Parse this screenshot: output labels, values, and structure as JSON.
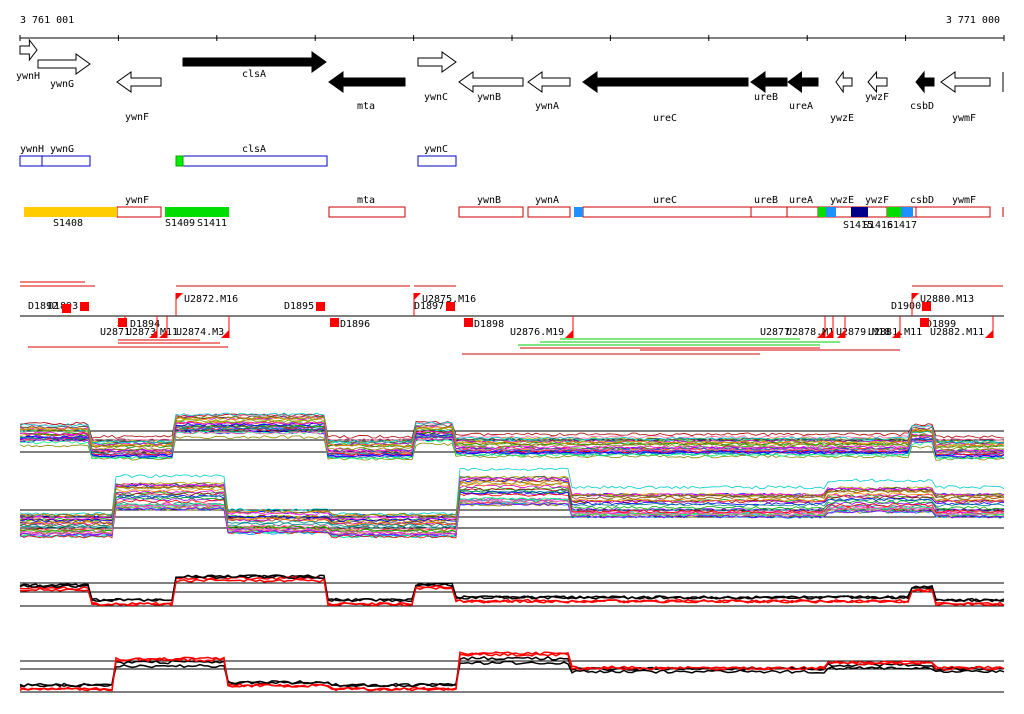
{
  "coords": {
    "start": "3 761 001",
    "end": "3 771 000"
  },
  "genes": [
    {
      "id": "g-ywnH",
      "label": "ywnH",
      "strand": "+",
      "filled": false
    },
    {
      "id": "g-ywnG",
      "label": "ywnG",
      "strand": "+",
      "filled": false
    },
    {
      "id": "g-ywnF",
      "label": "ywnF",
      "strand": "-",
      "filled": false
    },
    {
      "id": "g-clsA",
      "label": "clsA",
      "strand": "+",
      "filled": true
    },
    {
      "id": "g-mta",
      "label": "mta",
      "strand": "-",
      "filled": true
    },
    {
      "id": "g-ywnC",
      "label": "ywnC",
      "strand": "+",
      "filled": false
    },
    {
      "id": "g-ywnB",
      "label": "ywnB",
      "strand": "-",
      "filled": false
    },
    {
      "id": "g-ywnA",
      "label": "ywnA",
      "strand": "-",
      "filled": false
    },
    {
      "id": "g-ureC",
      "label": "ureC",
      "strand": "-",
      "filled": true
    },
    {
      "id": "g-ureB",
      "label": "ureB",
      "strand": "-",
      "filled": true
    },
    {
      "id": "g-ureA",
      "label": "ureA",
      "strand": "-",
      "filled": true
    },
    {
      "id": "g-ywzE",
      "label": "ywzE",
      "strand": "-",
      "filled": false
    },
    {
      "id": "g-ywzF",
      "label": "ywzF",
      "strand": "-",
      "filled": false
    },
    {
      "id": "g-csbD",
      "label": "csbD",
      "strand": "-",
      "filled": true
    },
    {
      "id": "g-ywmF",
      "label": "ywmF",
      "strand": "-",
      "filled": false
    }
  ],
  "fwd_boxes": [
    {
      "label": "ywnH"
    },
    {
      "label": "ywnG"
    },
    {
      "label": "clsA"
    },
    {
      "label": "ywnC"
    }
  ],
  "rev_boxes": [
    {
      "label": "ywnF"
    },
    {
      "label": "mta"
    },
    {
      "label": "ywnB"
    },
    {
      "label": "ywnA"
    },
    {
      "label": "ureC"
    },
    {
      "label": "ureB"
    },
    {
      "label": "ureA"
    },
    {
      "label": "ywzE"
    },
    {
      "label": "ywzF"
    },
    {
      "label": "csbD"
    },
    {
      "label": "ywmF"
    }
  ],
  "segments": [
    {
      "label": "S1408",
      "color": "#ffcc00"
    },
    {
      "label": "S1409",
      "color": "#00dd00"
    },
    {
      "label": "S1411",
      "color": ""
    },
    {
      "label": "S1415",
      "color": "#00dd00"
    },
    {
      "label": "S1416",
      "color": "#000088"
    },
    {
      "label": "S1417",
      "color": "#00dd00"
    }
  ],
  "upper_features": [
    "D1892",
    "D1893",
    "U2872.M16",
    "D1895",
    "U2875.M16",
    "D1897",
    "D1900",
    "U2880.M13"
  ],
  "lower_features": [
    "U2871",
    "D1894",
    "U2873",
    "M11",
    "U2874.M3",
    "D1896",
    "D1898",
    "U2876.M19",
    "U2877",
    "U2878.M1",
    "U2879.M18",
    "U2881.M11",
    "D1899",
    "U2882.M11"
  ],
  "panels": [
    {
      "id": "profile-multi-top",
      "type": "multi"
    },
    {
      "id": "profile-multi-bottom",
      "type": "multi"
    },
    {
      "id": "profile-pair-top",
      "type": "pair",
      "colors": [
        "#000000",
        "#ff0000"
      ]
    },
    {
      "id": "profile-pair-bottom",
      "type": "pair",
      "colors": [
        "#000000",
        "#ff0000"
      ]
    }
  ]
}
